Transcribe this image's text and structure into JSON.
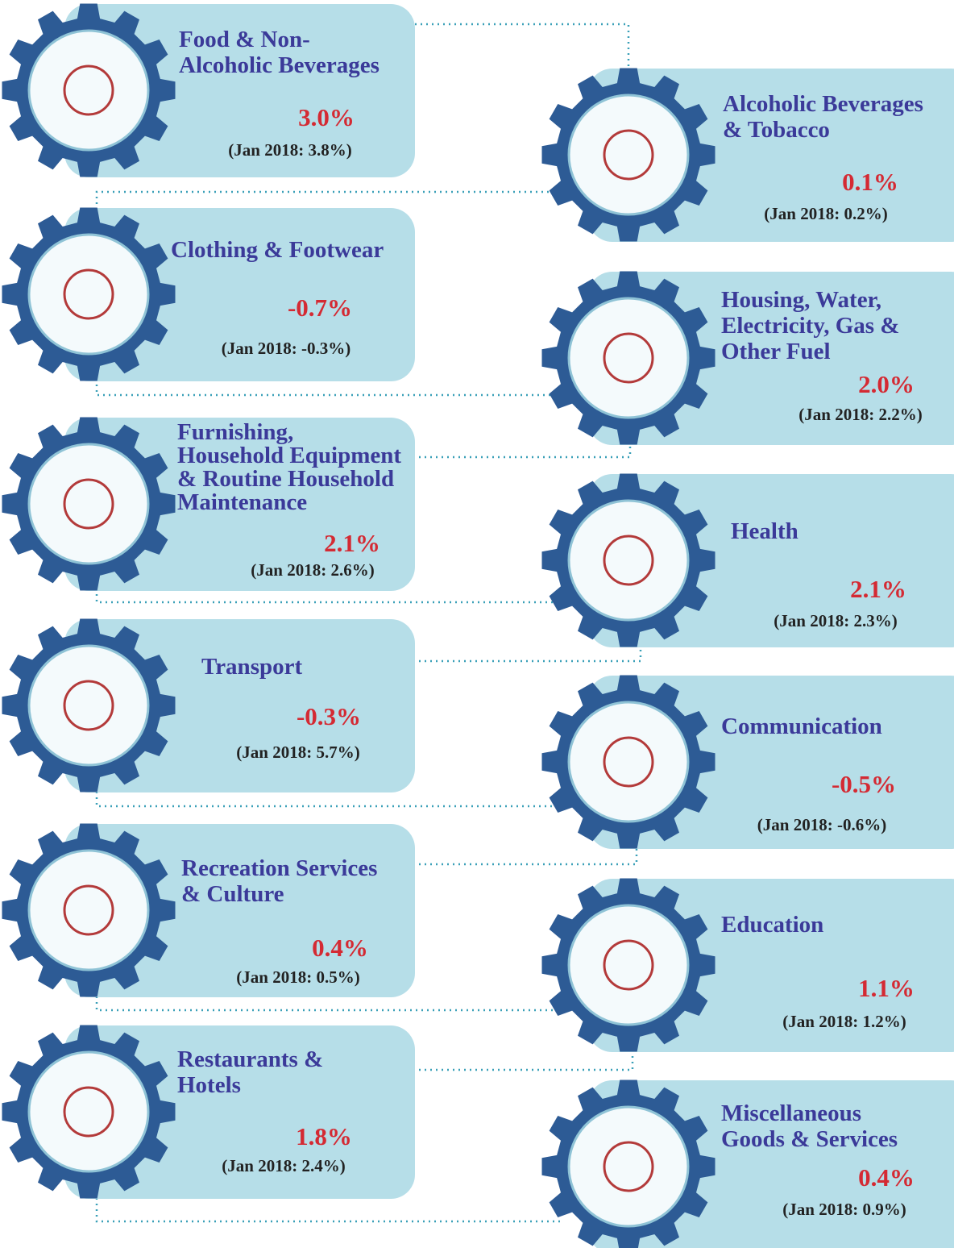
{
  "items": [
    {
      "title_lines": [
        "Food & Non-",
        "Alcoholic Beverages"
      ],
      "value": "3.0%",
      "previous": "(Jan 2018: 3.8%)"
    },
    {
      "title_lines": [
        "Alcoholic Beverages",
        "& Tobacco"
      ],
      "value": "0.1%",
      "previous": "(Jan 2018: 0.2%)"
    },
    {
      "title_lines": [
        "Clothing & Footwear"
      ],
      "value": "-0.7%",
      "previous": "(Jan 2018: -0.3%)"
    },
    {
      "title_lines": [
        "Housing, Water,",
        "Electricity, Gas &",
        "Other Fuel"
      ],
      "value": "2.0%",
      "previous": "(Jan 2018: 2.2%)"
    },
    {
      "title_lines": [
        "Furnishing,",
        "Household Equipment",
        "& Routine Household",
        "Maintenance"
      ],
      "value": "2.1%",
      "previous": "(Jan 2018: 2.6%)"
    },
    {
      "title_lines": [
        "Health"
      ],
      "value": "2.1%",
      "previous": "(Jan 2018: 2.3%)"
    },
    {
      "title_lines": [
        "Transport"
      ],
      "value": "-0.3%",
      "previous": "(Jan 2018: 5.7%)"
    },
    {
      "title_lines": [
        "Communication"
      ],
      "value": "-0.5%",
      "previous": "(Jan 2018: -0.6%)"
    },
    {
      "title_lines": [
        "Recreation Services",
        "& Culture"
      ],
      "value": "0.4%",
      "previous": "(Jan 2018: 0.5%)"
    },
    {
      "title_lines": [
        "Education"
      ],
      "value": "1.1%",
      "previous": "(Jan 2018: 1.2%)"
    },
    {
      "title_lines": [
        "Restaurants &",
        "Hotels"
      ],
      "value": "1.8%",
      "previous": "(Jan 2018: 2.4%)"
    },
    {
      "title_lines": [
        "Miscellaneous",
        "Goods & Services"
      ],
      "value": "0.4%",
      "previous": "(Jan 2018: 0.9%)"
    }
  ]
}
